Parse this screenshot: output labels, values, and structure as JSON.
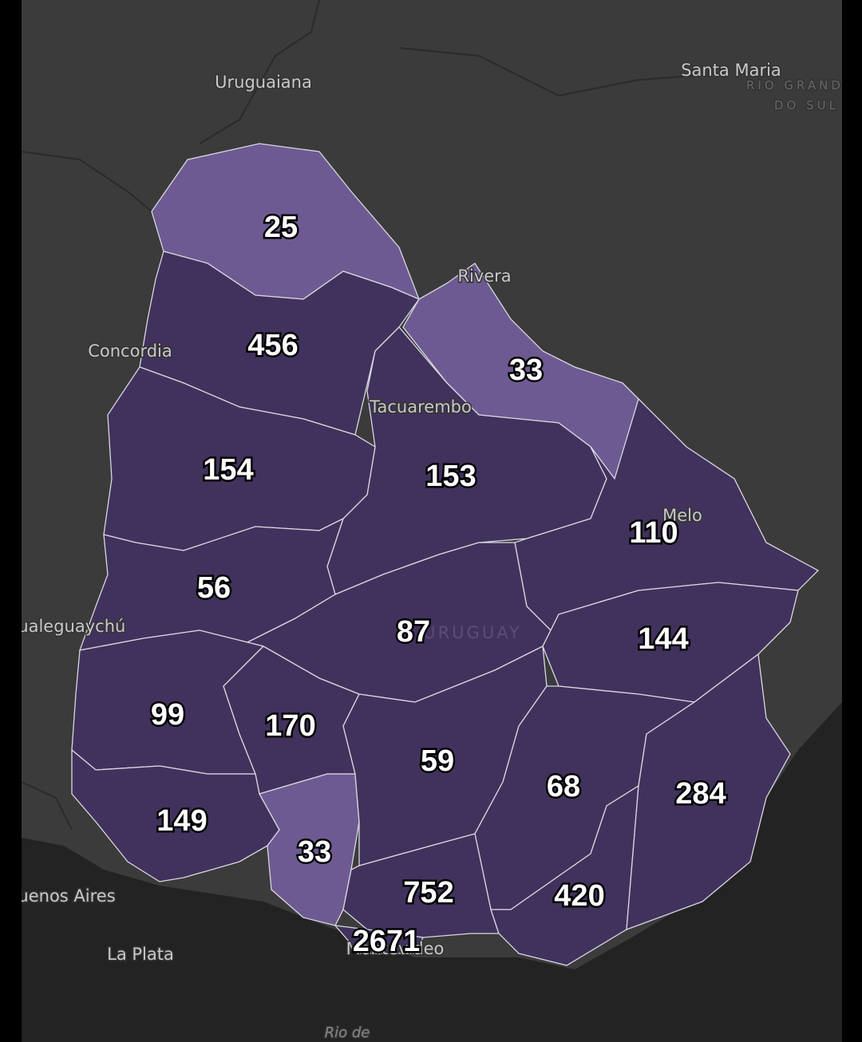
{
  "places": [
    "Uruguaiana",
    "Santa Maria",
    "RIO GRANDE",
    "DO SUL",
    "Concordia",
    "Rivera",
    "Tacuarembo",
    "Melo",
    "Gualeguaychú",
    "URUGUAY",
    "Buenos Aires",
    "La Plata",
    "Montevideo",
    "Rio de"
  ],
  "regions": [
    {
      "value": 25,
      "color": "#6e5a92"
    },
    {
      "value": 456,
      "color": "#41325d"
    },
    {
      "value": 33,
      "color": "#6e5a92"
    },
    {
      "value": 153,
      "color": "#41325d"
    },
    {
      "value": 154,
      "color": "#41325d"
    },
    {
      "value": 56,
      "color": "#41325d"
    },
    {
      "value": 110,
      "color": "#41325d"
    },
    {
      "value": 87,
      "color": "#41325d"
    },
    {
      "value": 144,
      "color": "#41325d"
    },
    {
      "value": 99,
      "color": "#41325d"
    },
    {
      "value": 170,
      "color": "#41325d"
    },
    {
      "value": 149,
      "color": "#41325d"
    },
    {
      "value": 33,
      "color": "#6e5a92"
    },
    {
      "value": 59,
      "color": "#41325d"
    },
    {
      "value": 68,
      "color": "#41325d"
    },
    {
      "value": 752,
      "color": "#41325d"
    },
    {
      "value": 2671,
      "color": "#41325d"
    },
    {
      "value": 420,
      "color": "#41325d"
    },
    {
      "value": 284,
      "color": "#41325d"
    }
  ]
}
